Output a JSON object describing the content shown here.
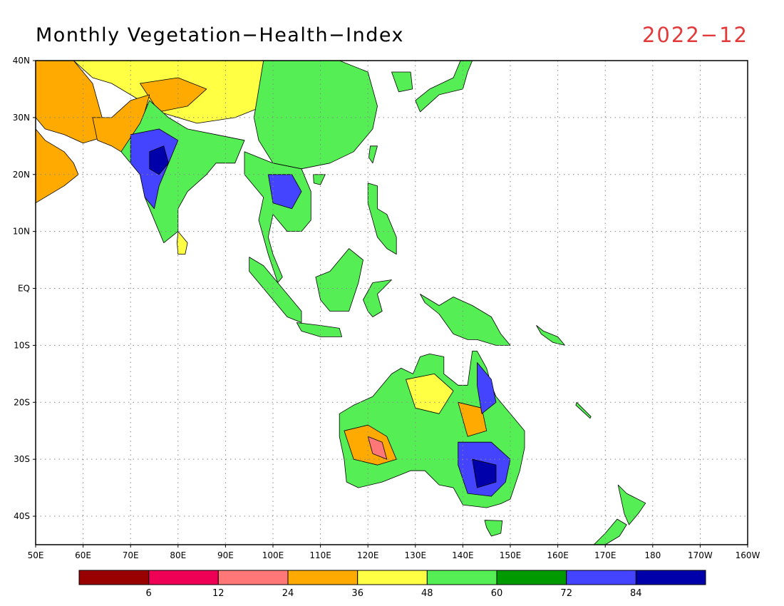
{
  "header": {
    "title": "Monthly Vegetation−Health−Index",
    "date": "2022−12"
  },
  "map": {
    "lon_range": [
      50,
      200
    ],
    "lat_range": [
      -45,
      40
    ],
    "lat_ticks": [
      {
        "value": 40,
        "label": "40N"
      },
      {
        "value": 30,
        "label": "30N"
      },
      {
        "value": 20,
        "label": "20N"
      },
      {
        "value": 10,
        "label": "10N"
      },
      {
        "value": 0,
        "label": "EQ"
      },
      {
        "value": -10,
        "label": "10S"
      },
      {
        "value": -20,
        "label": "20S"
      },
      {
        "value": -30,
        "label": "30S"
      },
      {
        "value": -40,
        "label": "40S"
      }
    ],
    "lon_ticks": [
      {
        "value": 50,
        "label": "50E"
      },
      {
        "value": 60,
        "label": "60E"
      },
      {
        "value": 70,
        "label": "70E"
      },
      {
        "value": 80,
        "label": "80E"
      },
      {
        "value": 90,
        "label": "90E"
      },
      {
        "value": 100,
        "label": "100E"
      },
      {
        "value": 110,
        "label": "110E"
      },
      {
        "value": 120,
        "label": "120E"
      },
      {
        "value": 130,
        "label": "130E"
      },
      {
        "value": 140,
        "label": "140E"
      },
      {
        "value": 150,
        "label": "150E"
      },
      {
        "value": 160,
        "label": "160E"
      },
      {
        "value": 170,
        "label": "170E"
      },
      {
        "value": 180,
        "label": "180"
      },
      {
        "value": 190,
        "label": "170W"
      },
      {
        "value": 200,
        "label": "160W"
      }
    ],
    "grid": true
  },
  "colorbar": {
    "colors": [
      "#990000",
      "#ee0055",
      "#ff7777",
      "#ffaa00",
      "#ffff44",
      "#55ee55",
      "#009900",
      "#4444ff",
      "#0000aa"
    ],
    "labels": [
      "6",
      "12",
      "24",
      "36",
      "48",
      "60",
      "72",
      "84"
    ]
  },
  "regions": [
    {
      "name": "arabia",
      "level": 3,
      "pts": [
        [
          50,
          28
        ],
        [
          52,
          26
        ],
        [
          56,
          24
        ],
        [
          58,
          22
        ],
        [
          59,
          20
        ],
        [
          56,
          18
        ],
        [
          52,
          16
        ],
        [
          50,
          15
        ]
      ]
    },
    {
      "name": "iran",
      "level": 3,
      "pts": [
        [
          50,
          40
        ],
        [
          58,
          40
        ],
        [
          62,
          36
        ],
        [
          64,
          30
        ],
        [
          66,
          27
        ],
        [
          60,
          25.5
        ],
        [
          56,
          27
        ],
        [
          52,
          28
        ],
        [
          50,
          30
        ]
      ]
    },
    {
      "name": "central-asia",
      "level": 4,
      "pts": [
        [
          58,
          40
        ],
        [
          100,
          40
        ],
        [
          104,
          35
        ],
        [
          98,
          32
        ],
        [
          92,
          30
        ],
        [
          84,
          29
        ],
        [
          76,
          31
        ],
        [
          70,
          34
        ],
        [
          66,
          36
        ],
        [
          62,
          37
        ]
      ]
    },
    {
      "name": "tibet-west",
      "level": 3,
      "pts": [
        [
          72,
          36
        ],
        [
          80,
          37
        ],
        [
          86,
          35
        ],
        [
          82,
          32
        ],
        [
          76,
          31
        ]
      ]
    },
    {
      "name": "pakistan",
      "level": 3,
      "pts": [
        [
          62,
          30
        ],
        [
          66,
          30
        ],
        [
          70,
          33
        ],
        [
          74,
          34
        ],
        [
          72,
          28
        ],
        [
          68,
          24
        ],
        [
          66,
          25
        ],
        [
          63,
          26
        ]
      ]
    },
    {
      "name": "china-east",
      "level": 5,
      "pts": [
        [
          98,
          40
        ],
        [
          114,
          40
        ],
        [
          120,
          38
        ],
        [
          122,
          32
        ],
        [
          121,
          28
        ],
        [
          117,
          24
        ],
        [
          112,
          22
        ],
        [
          106,
          21
        ],
        [
          100,
          22
        ],
        [
          97,
          26
        ],
        [
          96,
          30
        ]
      ]
    },
    {
      "name": "indochina",
      "level": 5,
      "pts": [
        [
          94,
          24
        ],
        [
          100,
          22
        ],
        [
          106,
          21
        ],
        [
          108,
          17
        ],
        [
          108,
          12
        ],
        [
          106,
          10
        ],
        [
          103,
          10
        ],
        [
          100,
          13
        ],
        [
          99,
          9
        ],
        [
          100,
          6
        ],
        [
          102,
          2
        ],
        [
          101,
          1
        ],
        [
          99,
          6
        ],
        [
          97,
          12
        ],
        [
          98,
          16
        ],
        [
          94,
          20
        ]
      ]
    },
    {
      "name": "indochina-blue",
      "level": 7,
      "pts": [
        [
          99,
          20
        ],
        [
          104,
          20
        ],
        [
          106,
          17
        ],
        [
          104,
          14
        ],
        [
          100,
          15
        ]
      ]
    },
    {
      "name": "india",
      "level": 5,
      "pts": [
        [
          68,
          24
        ],
        [
          70,
          22
        ],
        [
          72,
          20
        ],
        [
          73,
          16
        ],
        [
          75,
          12
        ],
        [
          77,
          8
        ],
        [
          80,
          10
        ],
        [
          80,
          14
        ],
        [
          82,
          17
        ],
        [
          86,
          20
        ],
        [
          88,
          22
        ],
        [
          92,
          22
        ],
        [
          94,
          26
        ],
        [
          88,
          27
        ],
        [
          82,
          28
        ],
        [
          78,
          30
        ],
        [
          74,
          33
        ],
        [
          72,
          29
        ]
      ]
    },
    {
      "name": "india-blue",
      "level": 7,
      "pts": [
        [
          70,
          27
        ],
        [
          76,
          28
        ],
        [
          80,
          26
        ],
        [
          78,
          22
        ],
        [
          76,
          18
        ],
        [
          75,
          14
        ],
        [
          73,
          16
        ],
        [
          72,
          20
        ],
        [
          70,
          22
        ]
      ]
    },
    {
      "name": "india-deep",
      "level": 8,
      "pts": [
        [
          74,
          24
        ],
        [
          77,
          25
        ],
        [
          78,
          22
        ],
        [
          76,
          20
        ],
        [
          74,
          21
        ]
      ]
    },
    {
      "name": "sri-lanka",
      "level": 4,
      "pts": [
        [
          80,
          10
        ],
        [
          82,
          8
        ],
        [
          81.5,
          6
        ],
        [
          80,
          6
        ],
        [
          79.8,
          8
        ]
      ]
    },
    {
      "name": "sumatra",
      "level": 5,
      "pts": [
        [
          95,
          5.5
        ],
        [
          98,
          4
        ],
        [
          102,
          0
        ],
        [
          106,
          -4
        ],
        [
          106,
          -6
        ],
        [
          103,
          -5
        ],
        [
          101,
          -3
        ],
        [
          98,
          0
        ],
        [
          95,
          3
        ]
      ]
    },
    {
      "name": "java",
      "level": 5,
      "pts": [
        [
          105,
          -6
        ],
        [
          110,
          -6.5
        ],
        [
          114,
          -7
        ],
        [
          114.5,
          -8.5
        ],
        [
          110,
          -8.5
        ],
        [
          106,
          -7.5
        ]
      ]
    },
    {
      "name": "borneo",
      "level": 5,
      "pts": [
        [
          109,
          2
        ],
        [
          112,
          3
        ],
        [
          116,
          7
        ],
        [
          119,
          5
        ],
        [
          118,
          1
        ],
        [
          116,
          -4
        ],
        [
          112,
          -4
        ],
        [
          110,
          -2
        ]
      ]
    },
    {
      "name": "sulawesi",
      "level": 5,
      "pts": [
        [
          119,
          -2
        ],
        [
          121,
          1
        ],
        [
          125,
          1.5
        ],
        [
          122,
          -1
        ],
        [
          123,
          -4
        ],
        [
          121,
          -5
        ],
        [
          120,
          -4
        ]
      ]
    },
    {
      "name": "philippines",
      "level": 5,
      "pts": [
        [
          120,
          18.5
        ],
        [
          122,
          18
        ],
        [
          122,
          14
        ],
        [
          124,
          13
        ],
        [
          126,
          9
        ],
        [
          126,
          6
        ],
        [
          124,
          7
        ],
        [
          122,
          9
        ],
        [
          121,
          12
        ],
        [
          120,
          15
        ]
      ]
    },
    {
      "name": "taiwan",
      "level": 5,
      "pts": [
        [
          120.5,
          25
        ],
        [
          122,
          25
        ],
        [
          121,
          22
        ],
        [
          120.2,
          23
        ]
      ]
    },
    {
      "name": "hainan",
      "level": 5,
      "pts": [
        [
          108.5,
          20
        ],
        [
          111,
          20
        ],
        [
          110,
          18.2
        ],
        [
          108.6,
          18.5
        ]
      ]
    },
    {
      "name": "japan",
      "level": 5,
      "pts": [
        [
          130,
          33
        ],
        [
          131,
          31
        ],
        [
          135,
          34
        ],
        [
          140,
          35
        ],
        [
          141,
          38
        ],
        [
          142,
          40
        ],
        [
          139.5,
          40
        ],
        [
          138,
          37
        ],
        [
          133,
          35
        ]
      ]
    },
    {
      "name": "korea",
      "level": 5,
      "pts": [
        [
          125,
          38
        ],
        [
          129,
          38
        ],
        [
          129.4,
          35
        ],
        [
          126.5,
          34.5
        ]
      ]
    },
    {
      "name": "new-guinea",
      "level": 5,
      "pts": [
        [
          131,
          -1
        ],
        [
          135,
          -3
        ],
        [
          138,
          -1.5
        ],
        [
          142,
          -3
        ],
        [
          146,
          -5
        ],
        [
          148,
          -8
        ],
        [
          150,
          -10
        ],
        [
          147,
          -10
        ],
        [
          143,
          -9
        ],
        [
          141,
          -9
        ],
        [
          138,
          -8
        ],
        [
          135,
          -4.5
        ],
        [
          132,
          -2.5
        ]
      ]
    },
    {
      "name": "australia",
      "level": 5,
      "pts": [
        [
          114,
          -22
        ],
        [
          114,
          -26
        ],
        [
          115,
          -30
        ],
        [
          115.5,
          -34
        ],
        [
          118,
          -35
        ],
        [
          123,
          -34
        ],
        [
          129,
          -32
        ],
        [
          132,
          -32
        ],
        [
          135,
          -34.5
        ],
        [
          138,
          -35
        ],
        [
          140,
          -38
        ],
        [
          145,
          -38.5
        ],
        [
          148,
          -37.8
        ],
        [
          150,
          -37
        ],
        [
          152,
          -32
        ],
        [
          153,
          -28
        ],
        [
          153,
          -25
        ],
        [
          150,
          -22
        ],
        [
          147,
          -19
        ],
        [
          146,
          -17
        ],
        [
          145,
          -14
        ],
        [
          143,
          -11
        ],
        [
          142,
          -11
        ],
        [
          141.5,
          -14
        ],
        [
          141,
          -17
        ],
        [
          139,
          -17
        ],
        [
          136,
          -15
        ],
        [
          136,
          -12
        ],
        [
          133,
          -11.5
        ],
        [
          131,
          -12
        ],
        [
          129.5,
          -15
        ],
        [
          127,
          -14
        ],
        [
          125,
          -15
        ],
        [
          123,
          -17
        ],
        [
          121,
          -19
        ],
        [
          117,
          -20.5
        ]
      ]
    },
    {
      "name": "australia-wa-orange",
      "level": 3,
      "pts": [
        [
          115,
          -25
        ],
        [
          120,
          -24
        ],
        [
          124,
          -26
        ],
        [
          126,
          -30
        ],
        [
          122,
          -31
        ],
        [
          117,
          -30
        ]
      ]
    },
    {
      "name": "australia-wa-red",
      "level": 2,
      "pts": [
        [
          120,
          -26
        ],
        [
          123,
          -27
        ],
        [
          124,
          -30
        ],
        [
          121,
          -29
        ]
      ]
    },
    {
      "name": "australia-north-yellow",
      "level": 4,
      "pts": [
        [
          128,
          -16
        ],
        [
          134,
          -15
        ],
        [
          138,
          -18
        ],
        [
          135,
          -22
        ],
        [
          130,
          -21
        ]
      ]
    },
    {
      "name": "australia-east-orange",
      "level": 3,
      "pts": [
        [
          139,
          -20
        ],
        [
          144,
          -21
        ],
        [
          145,
          -25
        ],
        [
          141,
          -26
        ]
      ]
    },
    {
      "name": "australia-se-blue",
      "level": 7,
      "pts": [
        [
          139,
          -27
        ],
        [
          146,
          -27
        ],
        [
          150,
          -30
        ],
        [
          149,
          -34
        ],
        [
          146,
          -36.5
        ],
        [
          141,
          -36
        ],
        [
          139,
          -31
        ]
      ]
    },
    {
      "name": "australia-se-deep",
      "level": 8,
      "pts": [
        [
          142,
          -30
        ],
        [
          147,
          -31
        ],
        [
          147,
          -34
        ],
        [
          143,
          -35
        ]
      ]
    },
    {
      "name": "australia-qld-blue",
      "level": 7,
      "pts": [
        [
          143,
          -13
        ],
        [
          146,
          -16
        ],
        [
          147,
          -20
        ],
        [
          144,
          -22
        ],
        [
          143,
          -17
        ]
      ]
    },
    {
      "name": "tasmania",
      "level": 5,
      "pts": [
        [
          144.6,
          -40.7
        ],
        [
          148.3,
          -40.8
        ],
        [
          148,
          -43
        ],
        [
          146,
          -43.5
        ],
        [
          145,
          -42
        ]
      ]
    },
    {
      "name": "nz-north",
      "level": 5,
      "pts": [
        [
          172.7,
          -34.5
        ],
        [
          174.5,
          -36
        ],
        [
          178.5,
          -37.7
        ],
        [
          177,
          -39.5
        ],
        [
          175,
          -41.5
        ],
        [
          174,
          -39.5
        ]
      ]
    },
    {
      "name": "nz-south",
      "level": 5,
      "pts": [
        [
          172.5,
          -40.5
        ],
        [
          174.5,
          -41.5
        ],
        [
          173,
          -43.5
        ],
        [
          171,
          -44.5
        ],
        [
          168,
          -46
        ],
        [
          167,
          -45.5
        ],
        [
          170,
          -43
        ]
      ]
    },
    {
      "name": "new-caledonia",
      "level": 5,
      "pts": [
        [
          164,
          -20
        ],
        [
          167,
          -22.5
        ],
        [
          166.8,
          -22.8
        ],
        [
          163.8,
          -20.5
        ]
      ]
    },
    {
      "name": "solomons",
      "level": 5,
      "pts": [
        [
          155.5,
          -6.5
        ],
        [
          157,
          -7.5
        ],
        [
          160,
          -8.5
        ],
        [
          161.5,
          -10
        ],
        [
          159,
          -9.5
        ],
        [
          156.5,
          -8
        ]
      ]
    }
  ]
}
